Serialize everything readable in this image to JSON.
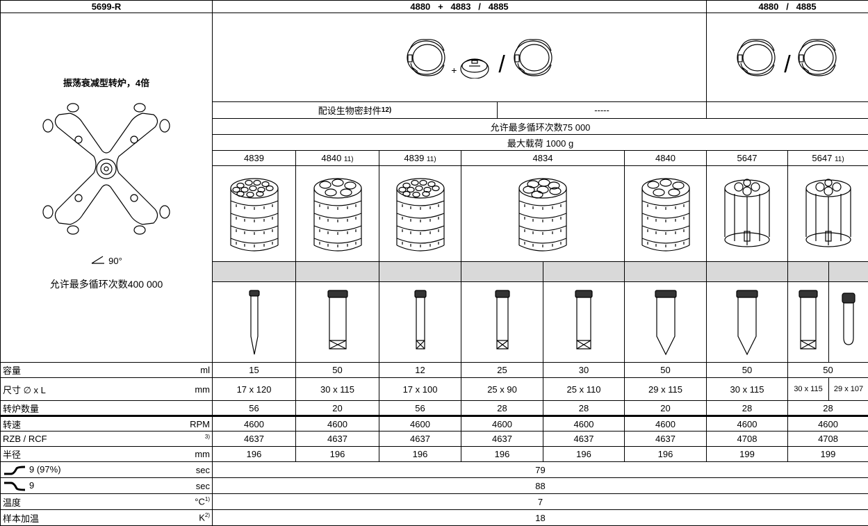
{
  "header": {
    "rotor": "5699-R",
    "buckets_a": "4880   +   4883   /   4885",
    "buckets_b": "4880   /   4885"
  },
  "rotor": {
    "name": "振荡衰减型转炉，4倍",
    "angle": "90°",
    "cycles": "允许最多循环次数400 000"
  },
  "symbols": {
    "plus": "+",
    "slash_a": "/",
    "slash_b": "/"
  },
  "seal": {
    "text": "配设生物密封件",
    "note": "12)",
    "none": "-----"
  },
  "bucket_cycles": "允许最多循环次数75 000",
  "max_load": "最大载荷  1000 g",
  "adapters": [
    {
      "label": "4839"
    },
    {
      "label": "4840",
      "note": "11)"
    },
    {
      "label": "4839",
      "note": "11)"
    },
    {
      "label": "4834"
    },
    {
      "label": "4840"
    },
    {
      "label": "5647"
    },
    {
      "label": "5647",
      "note": "11)"
    }
  ],
  "rows": [
    {
      "label": "容量",
      "unit": "ml",
      "cells": [
        "15",
        "50",
        "12",
        "25",
        "30",
        "50",
        "50",
        "50"
      ]
    },
    {
      "label": "尺寸  ∅ x L",
      "unit": "mm",
      "cells": [
        "17 x 120",
        "30 x 115",
        "17 x 100",
        "25 x 90",
        "25 x 110",
        "29 x 115",
        "30 x 115",
        "30 x 115",
        "29 x 107"
      ]
    },
    {
      "label": "转炉数量",
      "cells": [
        "56",
        "20",
        "56",
        "28",
        "28",
        "20",
        "28",
        "28"
      ]
    },
    {
      "label": "转速",
      "unit": "RPM",
      "cells": [
        "4600",
        "4600",
        "4600",
        "4600",
        "4600",
        "4600",
        "4600",
        "4600"
      ]
    },
    {
      "label": "RZB / RCF",
      "unit_note": "3)",
      "cells": [
        "4637",
        "4637",
        "4637",
        "4637",
        "4637",
        "4637",
        "4708",
        "4708"
      ]
    },
    {
      "label": "半径",
      "unit": "mm",
      "cells": [
        "196",
        "196",
        "196",
        "196",
        "196",
        "196",
        "199",
        "199"
      ]
    },
    {
      "label": "9 (97%)",
      "unit": "sec",
      "cells": [
        "79"
      ]
    },
    {
      "label": "9",
      "unit": "sec",
      "cells": [
        "88"
      ]
    },
    {
      "label": "温度",
      "unit": "°C",
      "unit_note": "1)",
      "cells": [
        "7"
      ]
    },
    {
      "label": "样本加温",
      "unit": "K",
      "unit_note": "2)",
      "cells": [
        "18"
      ]
    }
  ]
}
